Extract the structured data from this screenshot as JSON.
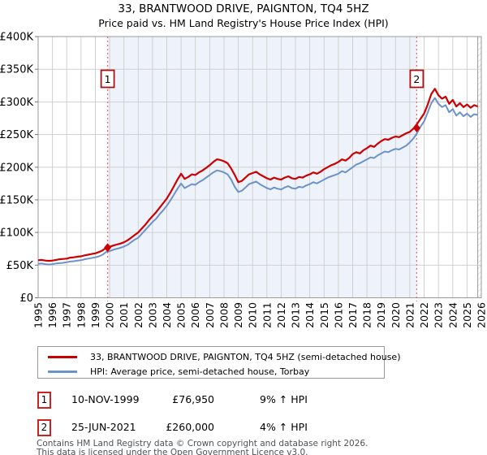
{
  "title": "33, BRANTWOOD DRIVE, PAIGNTON, TQ4 5HZ",
  "subtitle": "Price paid vs. HM Land Registry's House Price Index (HPI)",
  "colors": {
    "red": "#cc0000",
    "blue": "#6b93c8",
    "shade": "#eef2fa",
    "grid": "#cccccc",
    "spine": "#9a9a9a",
    "sale_line": "#f06a6a",
    "marker_box_border": "#aa1111",
    "badge_border": "#cc2222",
    "hatch": "#c9c9c9"
  },
  "chart_data": {
    "type": "line",
    "x_range": [
      1995,
      2026
    ],
    "y_range_k": [
      0,
      400
    ],
    "x_ticks": [
      1995,
      1996,
      1997,
      1998,
      1999,
      2000,
      2001,
      2002,
      2003,
      2004,
      2005,
      2006,
      2007,
      2008,
      2009,
      2010,
      2011,
      2012,
      2013,
      2014,
      2015,
      2016,
      2017,
      2018,
      2019,
      2020,
      2021,
      2022,
      2023,
      2024,
      2025,
      2026
    ],
    "y_ticks": [
      {
        "value": 0,
        "label": "£0"
      },
      {
        "value": 50,
        "label": "£50K"
      },
      {
        "value": 100,
        "label": "£100K"
      },
      {
        "value": 150,
        "label": "£150K"
      },
      {
        "value": 200,
        "label": "£200K"
      },
      {
        "value": 250,
        "label": "£250K"
      },
      {
        "value": 300,
        "label": "£300K"
      },
      {
        "value": 350,
        "label": "£350K"
      },
      {
        "value": 400,
        "label": "£400K"
      }
    ],
    "shade_between": [
      1999.86,
      2021.48
    ],
    "hatch_from_year": 2025.75,
    "sales": [
      {
        "num": "1",
        "year": 1999.86,
        "price_k": 76.95
      },
      {
        "num": "2",
        "year": 2021.48,
        "price_k": 260
      }
    ],
    "series": [
      {
        "name": "33, BRANTWOOD DRIVE, PAIGNTON, TQ4 5HZ (semi-detached house)",
        "color": "#cc0000",
        "x_start": 1995.0,
        "x_step": 0.25,
        "values_k": [
          57.5,
          58,
          57,
          56.5,
          57,
          58,
          59,
          59.5,
          60,
          61.5,
          62,
          63,
          63.5,
          65,
          66,
          67,
          68,
          70,
          72.5,
          76.5,
          78,
          80,
          81.5,
          83,
          85,
          88,
          92,
          96,
          100,
          106,
          112,
          119,
          125,
          131,
          138,
          145,
          152,
          161,
          171,
          181,
          190,
          182,
          185,
          189,
          188,
          192,
          195,
          199,
          203,
          208,
          212,
          211,
          209,
          206,
          198,
          188,
          177,
          179,
          184,
          189,
          191,
          193,
          189,
          186,
          183,
          181,
          184,
          182,
          181,
          184,
          186,
          183,
          182,
          185,
          184,
          187,
          189,
          192,
          190,
          193,
          197,
          200,
          203,
          205,
          208,
          212,
          210,
          214,
          220,
          223,
          221,
          226,
          229,
          233,
          231,
          236,
          240,
          243,
          242,
          245,
          247,
          246,
          249,
          252,
          254,
          259,
          266,
          274,
          282,
          296,
          312,
          320,
          310,
          305,
          308,
          297,
          303,
          293,
          298,
          292,
          296,
          291,
          295,
          293
        ]
      },
      {
        "name": "HPI: Average price, semi-detached house, Torbay",
        "color": "#6b93c8",
        "x_start": 1995.0,
        "x_step": 0.25,
        "values_k": [
          52,
          52.5,
          51.5,
          51,
          51.5,
          52.5,
          53,
          53.5,
          54.5,
          55.5,
          56,
          57,
          57.5,
          59,
          60,
          61,
          62,
          63.5,
          66,
          70,
          71.5,
          73.5,
          75,
          76.5,
          78.5,
          81,
          85,
          89,
          92,
          98,
          104,
          110,
          116,
          121,
          128,
          134,
          141,
          149,
          158,
          167,
          175,
          168,
          171,
          174,
          173,
          177,
          180,
          184,
          188,
          192,
          195,
          194,
          192,
          189,
          181,
          170,
          162,
          164,
          169,
          174,
          176,
          178,
          174,
          171,
          168,
          166,
          169,
          167,
          166,
          169,
          171,
          168,
          167,
          170,
          169,
          172,
          174,
          177,
          175,
          178,
          181,
          184,
          186,
          188,
          190,
          194,
          192,
          196,
          200,
          204,
          206,
          209,
          212,
          215,
          214,
          218,
          221,
          224,
          223,
          226,
          228,
          227,
          230,
          233,
          238,
          244,
          252,
          262,
          270,
          284,
          298,
          306,
          297,
          292,
          295,
          284,
          289,
          279,
          284,
          278,
          282,
          277,
          281,
          280
        ]
      }
    ]
  },
  "legend": [
    {
      "label": "33, BRANTWOOD DRIVE, PAIGNTON, TQ4 5HZ (semi-detached house)"
    },
    {
      "label": "HPI: Average price, semi-detached house, Torbay"
    }
  ],
  "annotations": [
    {
      "num": "1",
      "date": "10-NOV-1999",
      "price": "£76,950",
      "hpi": "9% ↑ HPI"
    },
    {
      "num": "2",
      "date": "25-JUN-2021",
      "price": "£260,000",
      "hpi": "4% ↑ HPI"
    }
  ],
  "footer": {
    "line1": "Contains HM Land Registry data © Crown copyright and database right 2026.",
    "line2": "This data is licensed under the Open Government Licence v3.0."
  }
}
